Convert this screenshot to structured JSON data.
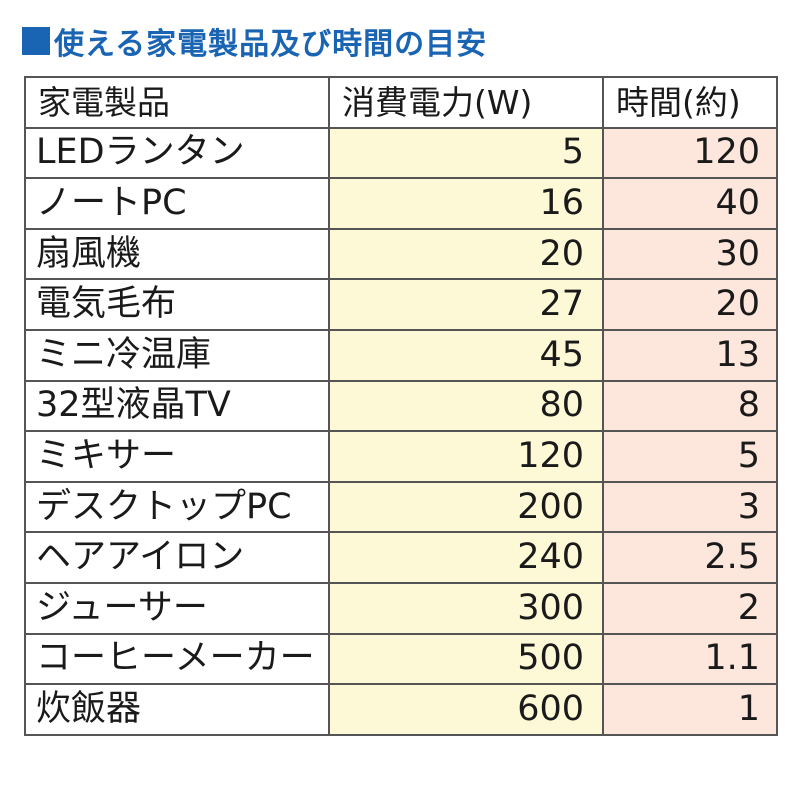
{
  "header": {
    "marker": "■",
    "title": "使える家電製品及び時間の目安"
  },
  "colors": {
    "title": "#1a64b4",
    "watt_column_bg": "#fdf8d6",
    "hours_column_bg": "#fde6dc",
    "border": "#555555"
  },
  "chart_data": {
    "type": "table",
    "title": "使える家電製品及び時間の目安",
    "columns": [
      "家電製品",
      "消費電力(W)",
      "時間(約)"
    ],
    "rows": [
      {
        "name": "LEDランタン",
        "watt": "5",
        "hours": "120"
      },
      {
        "name": "ノートPC",
        "watt": "16",
        "hours": "40"
      },
      {
        "name": "扇風機",
        "watt": "20",
        "hours": "30"
      },
      {
        "name": "電気毛布",
        "watt": "27",
        "hours": "20"
      },
      {
        "name": "ミニ冷温庫",
        "watt": "45",
        "hours": "13"
      },
      {
        "name": "32型液晶TV",
        "watt": "80",
        "hours": "8"
      },
      {
        "name": "ミキサー",
        "watt": "120",
        "hours": "5"
      },
      {
        "name": "デスクトップPC",
        "watt": "200",
        "hours": "3"
      },
      {
        "name": "ヘアアイロン",
        "watt": "240",
        "hours": "2.5"
      },
      {
        "name": "ジューサー",
        "watt": "300",
        "hours": "2"
      },
      {
        "name": "コーヒーメーカー",
        "watt": "500",
        "hours": "1.1"
      },
      {
        "name": "炊飯器",
        "watt": "600",
        "hours": "1"
      }
    ]
  }
}
